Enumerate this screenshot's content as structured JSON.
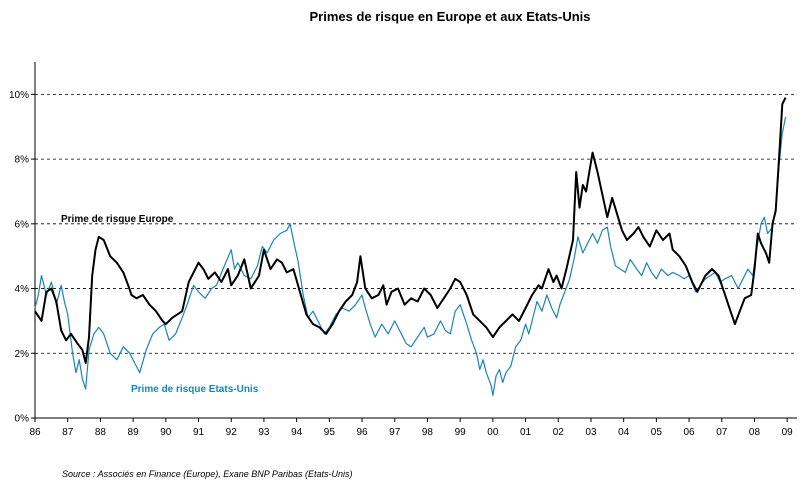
{
  "chart_data": {
    "type": "line",
    "title": "Primes de risque en Europe et aux Etats-Unis",
    "xlabel": "",
    "ylabel": "",
    "xlim": [
      1986.0,
      2009.3
    ],
    "ylim": [
      0,
      11
    ],
    "y_ticks": [
      0,
      2,
      4,
      6,
      8,
      10
    ],
    "y_tick_labels": [
      "0%",
      "2%",
      "4%",
      "6%",
      "8%",
      "10%"
    ],
    "x_ticks": [
      1986,
      1987,
      1988,
      1989,
      1990,
      1991,
      1992,
      1993,
      1994,
      1995,
      1996,
      1997,
      1998,
      1999,
      2000,
      2001,
      2002,
      2003,
      2004,
      2005,
      2006,
      2007,
      2008,
      2009
    ],
    "x_tick_labels": [
      "86",
      "87",
      "88",
      "89",
      "90",
      "91",
      "92",
      "93",
      "94",
      "95",
      "96",
      "97",
      "98",
      "99",
      "00",
      "01",
      "02",
      "03",
      "04",
      "05",
      "06",
      "07",
      "08",
      "09"
    ],
    "grid": "horizontal dashed",
    "series": [
      {
        "name": "Prime de risque Europe",
        "color": "#000000",
        "points": [
          [
            1986.0,
            3.3
          ],
          [
            1986.2,
            3.0
          ],
          [
            1986.35,
            3.9
          ],
          [
            1986.5,
            4.0
          ],
          [
            1986.65,
            3.6
          ],
          [
            1986.8,
            2.7
          ],
          [
            1986.95,
            2.4
          ],
          [
            1987.1,
            2.6
          ],
          [
            1987.3,
            2.3
          ],
          [
            1987.45,
            2.1
          ],
          [
            1987.55,
            1.7
          ],
          [
            1987.65,
            2.5
          ],
          [
            1987.75,
            4.4
          ],
          [
            1987.85,
            5.2
          ],
          [
            1987.95,
            5.6
          ],
          [
            1988.1,
            5.5
          ],
          [
            1988.3,
            5.0
          ],
          [
            1988.5,
            4.8
          ],
          [
            1988.7,
            4.5
          ],
          [
            1988.85,
            4.1
          ],
          [
            1988.95,
            3.8
          ],
          [
            1989.1,
            3.7
          ],
          [
            1989.3,
            3.8
          ],
          [
            1989.5,
            3.5
          ],
          [
            1989.7,
            3.3
          ],
          [
            1989.9,
            3.0
          ],
          [
            1990.0,
            2.9
          ],
          [
            1990.2,
            3.1
          ],
          [
            1990.5,
            3.3
          ],
          [
            1990.7,
            4.2
          ],
          [
            1990.85,
            4.5
          ],
          [
            1991.0,
            4.8
          ],
          [
            1991.15,
            4.6
          ],
          [
            1991.3,
            4.3
          ],
          [
            1991.5,
            4.5
          ],
          [
            1991.7,
            4.2
          ],
          [
            1991.9,
            4.6
          ],
          [
            1992.0,
            4.1
          ],
          [
            1992.2,
            4.4
          ],
          [
            1992.4,
            4.9
          ],
          [
            1992.6,
            4.0
          ],
          [
            1992.85,
            4.4
          ],
          [
            1993.0,
            5.2
          ],
          [
            1993.2,
            4.6
          ],
          [
            1993.4,
            4.9
          ],
          [
            1993.55,
            4.8
          ],
          [
            1993.7,
            4.5
          ],
          [
            1993.9,
            4.6
          ],
          [
            1994.1,
            3.9
          ],
          [
            1994.3,
            3.2
          ],
          [
            1994.5,
            2.9
          ],
          [
            1994.7,
            2.8
          ],
          [
            1994.9,
            2.6
          ],
          [
            1995.1,
            2.9
          ],
          [
            1995.3,
            3.3
          ],
          [
            1995.5,
            3.6
          ],
          [
            1995.7,
            3.8
          ],
          [
            1995.85,
            4.2
          ],
          [
            1995.95,
            5.0
          ],
          [
            1996.1,
            4.0
          ],
          [
            1996.3,
            3.7
          ],
          [
            1996.5,
            3.8
          ],
          [
            1996.65,
            4.1
          ],
          [
            1996.75,
            3.5
          ],
          [
            1996.9,
            3.9
          ],
          [
            1997.1,
            4.0
          ],
          [
            1997.3,
            3.5
          ],
          [
            1997.5,
            3.7
          ],
          [
            1997.7,
            3.6
          ],
          [
            1997.9,
            4.0
          ],
          [
            1998.1,
            3.8
          ],
          [
            1998.3,
            3.4
          ],
          [
            1998.5,
            3.7
          ],
          [
            1998.7,
            4.0
          ],
          [
            1998.85,
            4.3
          ],
          [
            1999.0,
            4.2
          ],
          [
            1999.2,
            3.8
          ],
          [
            1999.4,
            3.2
          ],
          [
            1999.6,
            3.0
          ],
          [
            1999.8,
            2.8
          ],
          [
            2000.0,
            2.5
          ],
          [
            2000.2,
            2.8
          ],
          [
            2000.4,
            3.0
          ],
          [
            2000.6,
            3.2
          ],
          [
            2000.8,
            3.0
          ],
          [
            2001.0,
            3.4
          ],
          [
            2001.2,
            3.8
          ],
          [
            2001.4,
            4.1
          ],
          [
            2001.5,
            4.0
          ],
          [
            2001.7,
            4.6
          ],
          [
            2001.85,
            4.2
          ],
          [
            2001.95,
            4.4
          ],
          [
            2002.1,
            4.0
          ],
          [
            2002.25,
            4.6
          ],
          [
            2002.45,
            5.5
          ],
          [
            2002.55,
            7.6
          ],
          [
            2002.65,
            6.5
          ],
          [
            2002.75,
            7.2
          ],
          [
            2002.85,
            7.0
          ],
          [
            2002.95,
            7.6
          ],
          [
            2003.05,
            8.2
          ],
          [
            2003.2,
            7.6
          ],
          [
            2003.35,
            6.9
          ],
          [
            2003.5,
            6.2
          ],
          [
            2003.65,
            6.8
          ],
          [
            2003.8,
            6.3
          ],
          [
            2003.95,
            5.8
          ],
          [
            2004.1,
            5.5
          ],
          [
            2004.3,
            5.7
          ],
          [
            2004.45,
            5.9
          ],
          [
            2004.6,
            5.6
          ],
          [
            2004.8,
            5.3
          ],
          [
            2005.0,
            5.8
          ],
          [
            2005.2,
            5.5
          ],
          [
            2005.4,
            5.7
          ],
          [
            2005.5,
            5.2
          ],
          [
            2005.7,
            5.0
          ],
          [
            2005.9,
            4.7
          ],
          [
            2006.1,
            4.2
          ],
          [
            2006.25,
            3.9
          ],
          [
            2006.5,
            4.4
          ],
          [
            2006.7,
            4.6
          ],
          [
            2006.9,
            4.4
          ],
          [
            2007.1,
            3.8
          ],
          [
            2007.3,
            3.2
          ],
          [
            2007.4,
            2.9
          ],
          [
            2007.55,
            3.3
          ],
          [
            2007.7,
            3.7
          ],
          [
            2007.9,
            3.8
          ],
          [
            2008.0,
            4.6
          ],
          [
            2008.1,
            5.7
          ],
          [
            2008.2,
            5.4
          ],
          [
            2008.35,
            5.1
          ],
          [
            2008.45,
            4.8
          ],
          [
            2008.55,
            6.0
          ],
          [
            2008.65,
            6.4
          ],
          [
            2008.75,
            8.0
          ],
          [
            2008.85,
            9.7
          ],
          [
            2008.95,
            9.9
          ]
        ]
      },
      {
        "name": "Prime de risque Etats-Unis",
        "color": "#1a85b5",
        "points": [
          [
            1986.0,
            3.4
          ],
          [
            1986.1,
            3.8
          ],
          [
            1986.2,
            4.4
          ],
          [
            1986.35,
            3.8
          ],
          [
            1986.5,
            4.2
          ],
          [
            1986.65,
            3.5
          ],
          [
            1986.8,
            4.1
          ],
          [
            1986.9,
            3.6
          ],
          [
            1987.0,
            3.2
          ],
          [
            1987.15,
            2.0
          ],
          [
            1987.25,
            1.4
          ],
          [
            1987.35,
            1.8
          ],
          [
            1987.45,
            1.2
          ],
          [
            1987.55,
            0.9
          ],
          [
            1987.65,
            2.1
          ],
          [
            1987.8,
            2.6
          ],
          [
            1987.95,
            2.8
          ],
          [
            1988.1,
            2.6
          ],
          [
            1988.3,
            2.0
          ],
          [
            1988.5,
            1.8
          ],
          [
            1988.7,
            2.2
          ],
          [
            1988.9,
            2.0
          ],
          [
            1989.05,
            1.7
          ],
          [
            1989.2,
            1.4
          ],
          [
            1989.4,
            2.1
          ],
          [
            1989.6,
            2.6
          ],
          [
            1989.8,
            2.8
          ],
          [
            1989.95,
            2.9
          ],
          [
            1990.1,
            2.4
          ],
          [
            1990.3,
            2.6
          ],
          [
            1990.5,
            3.1
          ],
          [
            1990.65,
            3.5
          ],
          [
            1990.85,
            4.1
          ],
          [
            1991.0,
            3.9
          ],
          [
            1991.2,
            3.7
          ],
          [
            1991.4,
            4.0
          ],
          [
            1991.55,
            4.1
          ],
          [
            1991.75,
            4.6
          ],
          [
            1992.0,
            5.2
          ],
          [
            1992.1,
            4.6
          ],
          [
            1992.2,
            4.8
          ],
          [
            1992.4,
            4.4
          ],
          [
            1992.6,
            4.3
          ],
          [
            1992.8,
            4.7
          ],
          [
            1992.95,
            5.3
          ],
          [
            1993.1,
            5.1
          ],
          [
            1993.3,
            5.5
          ],
          [
            1993.5,
            5.7
          ],
          [
            1993.7,
            5.8
          ],
          [
            1993.8,
            6.0
          ],
          [
            1993.9,
            5.5
          ],
          [
            1994.05,
            4.8
          ],
          [
            1994.2,
            3.8
          ],
          [
            1994.35,
            3.1
          ],
          [
            1994.5,
            3.3
          ],
          [
            1994.7,
            2.9
          ],
          [
            1994.85,
            2.6
          ],
          [
            1995.0,
            2.8
          ],
          [
            1995.2,
            3.2
          ],
          [
            1995.4,
            3.4
          ],
          [
            1995.6,
            3.3
          ],
          [
            1995.8,
            3.5
          ],
          [
            1996.0,
            3.8
          ],
          [
            1996.1,
            3.4
          ],
          [
            1996.25,
            2.9
          ],
          [
            1996.4,
            2.5
          ],
          [
            1996.6,
            2.9
          ],
          [
            1996.8,
            2.6
          ],
          [
            1997.0,
            3.0
          ],
          [
            1997.2,
            2.6
          ],
          [
            1997.35,
            2.3
          ],
          [
            1997.5,
            2.2
          ],
          [
            1997.7,
            2.5
          ],
          [
            1997.9,
            2.8
          ],
          [
            1998.0,
            2.5
          ],
          [
            1998.2,
            2.6
          ],
          [
            1998.4,
            3.0
          ],
          [
            1998.55,
            2.7
          ],
          [
            1998.7,
            2.6
          ],
          [
            1998.85,
            3.3
          ],
          [
            1999.0,
            3.5
          ],
          [
            1999.2,
            2.9
          ],
          [
            1999.35,
            2.4
          ],
          [
            1999.5,
            2.0
          ],
          [
            1999.6,
            1.5
          ],
          [
            1999.7,
            1.8
          ],
          [
            1999.8,
            1.4
          ],
          [
            1999.95,
            1.0
          ],
          [
            2000.0,
            0.7
          ],
          [
            2000.1,
            1.3
          ],
          [
            2000.2,
            1.5
          ],
          [
            2000.3,
            1.1
          ],
          [
            2000.4,
            1.4
          ],
          [
            2000.55,
            1.6
          ],
          [
            2000.7,
            2.2
          ],
          [
            2000.85,
            2.4
          ],
          [
            2001.0,
            2.9
          ],
          [
            2001.1,
            2.6
          ],
          [
            2001.2,
            3.0
          ],
          [
            2001.35,
            3.6
          ],
          [
            2001.5,
            3.3
          ],
          [
            2001.65,
            3.8
          ],
          [
            2001.8,
            3.4
          ],
          [
            2001.95,
            3.1
          ],
          [
            2002.05,
            3.5
          ],
          [
            2002.2,
            3.9
          ],
          [
            2002.35,
            4.3
          ],
          [
            2002.5,
            5.0
          ],
          [
            2002.6,
            5.6
          ],
          [
            2002.75,
            5.1
          ],
          [
            2002.9,
            5.4
          ],
          [
            2003.05,
            5.7
          ],
          [
            2003.2,
            5.4
          ],
          [
            2003.35,
            5.8
          ],
          [
            2003.5,
            5.9
          ],
          [
            2003.6,
            5.3
          ],
          [
            2003.75,
            4.7
          ],
          [
            2003.9,
            4.6
          ],
          [
            2004.05,
            4.5
          ],
          [
            2004.2,
            4.9
          ],
          [
            2004.4,
            4.6
          ],
          [
            2004.55,
            4.4
          ],
          [
            2004.7,
            4.8
          ],
          [
            2004.85,
            4.5
          ],
          [
            2005.0,
            4.3
          ],
          [
            2005.15,
            4.6
          ],
          [
            2005.35,
            4.4
          ],
          [
            2005.5,
            4.5
          ],
          [
            2005.7,
            4.4
          ],
          [
            2005.85,
            4.3
          ],
          [
            2006.0,
            4.4
          ],
          [
            2006.2,
            3.9
          ],
          [
            2006.35,
            4.1
          ],
          [
            2006.5,
            4.3
          ],
          [
            2006.65,
            4.4
          ],
          [
            2006.8,
            4.5
          ],
          [
            2006.95,
            4.2
          ],
          [
            2007.1,
            4.3
          ],
          [
            2007.3,
            4.4
          ],
          [
            2007.5,
            4.0
          ],
          [
            2007.65,
            4.3
          ],
          [
            2007.8,
            4.6
          ],
          [
            2007.95,
            4.4
          ],
          [
            2008.05,
            5.1
          ],
          [
            2008.2,
            6.0
          ],
          [
            2008.3,
            6.2
          ],
          [
            2008.4,
            5.7
          ],
          [
            2008.55,
            5.9
          ],
          [
            2008.65,
            6.5
          ],
          [
            2008.75,
            7.8
          ],
          [
            2008.85,
            8.8
          ],
          [
            2008.95,
            9.3
          ]
        ]
      }
    ],
    "annotations": [
      "Prime de risque Europe",
      "Prime de risque Etats-Unis"
    ],
    "source": "Source : Associés en Finance (Europe), Exane BNP Paribas (Etats-Unis)"
  }
}
